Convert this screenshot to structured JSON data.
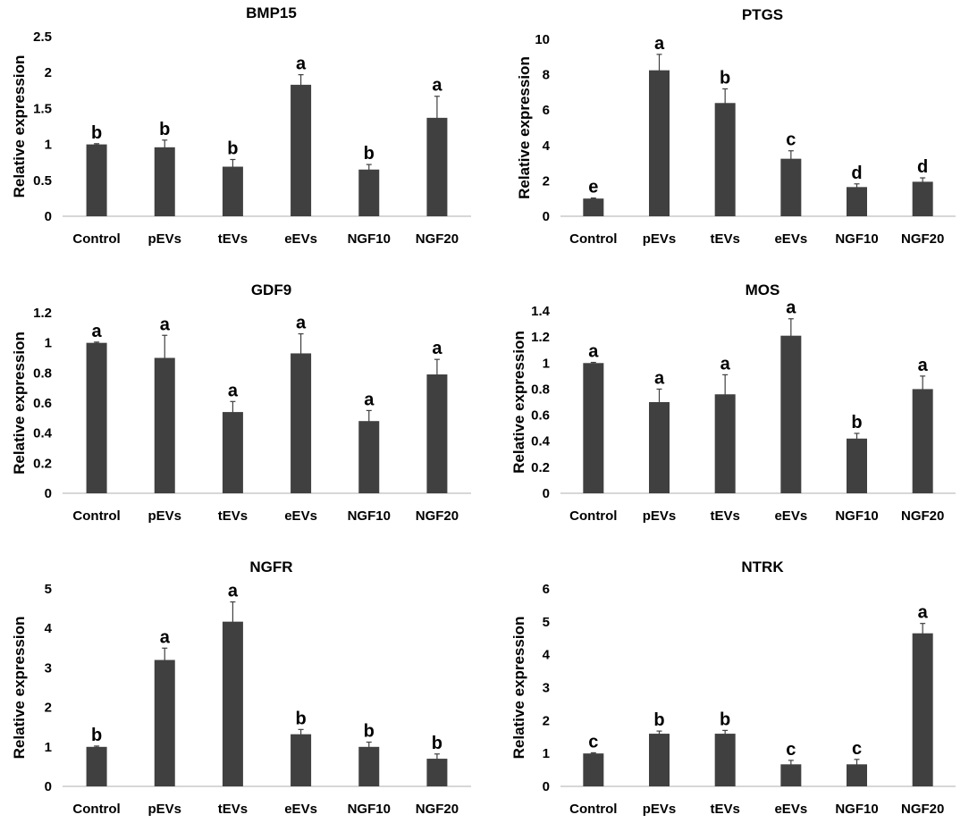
{
  "chart_data": [
    {
      "type": "bar",
      "title": "BMP15",
      "ylabel": "Relative expression",
      "xlabel": "",
      "categories": [
        "Control",
        "pEVs",
        "tEVs",
        "eEVs",
        "NGF10",
        "NGF20"
      ],
      "values": [
        1.0,
        0.96,
        0.69,
        1.83,
        0.65,
        1.37
      ],
      "errors": [
        0.01,
        0.1,
        0.1,
        0.14,
        0.07,
        0.3
      ],
      "significance": [
        "b",
        "b",
        "b",
        "a",
        "b",
        "a"
      ],
      "ylim": [
        0,
        2.5
      ],
      "yticks": [
        "0",
        "0.5",
        "1",
        "1.5",
        "2",
        "2.5"
      ],
      "ytick_values": [
        0,
        0.5,
        1,
        1.5,
        2,
        2.5
      ],
      "bar_color": "#404040"
    },
    {
      "type": "bar",
      "title": "PTGS",
      "ylabel": "Relative expression",
      "xlabel": "",
      "categories": [
        "Control",
        "pEVs",
        "tEVs",
        "eEVs",
        "NGF10",
        "NGF20"
      ],
      "values": [
        1.0,
        8.25,
        6.4,
        3.25,
        1.65,
        1.95
      ],
      "errors": [
        0.03,
        0.9,
        0.8,
        0.45,
        0.18,
        0.22
      ],
      "significance": [
        "e",
        "a",
        "b",
        "c",
        "d",
        "d"
      ],
      "ylim": [
        0,
        10
      ],
      "yticks": [
        "0",
        "2",
        "4",
        "6",
        "8",
        "10"
      ],
      "ytick_values": [
        0,
        2,
        4,
        6,
        8,
        10
      ],
      "bar_color": "#404040"
    },
    {
      "type": "bar",
      "title": "GDF9",
      "ylabel": "Relative expression",
      "xlabel": "",
      "categories": [
        "Control",
        "pEVs",
        "tEVs",
        "eEVs",
        "NGF10",
        "NGF20"
      ],
      "values": [
        1.0,
        0.9,
        0.54,
        0.93,
        0.48,
        0.79
      ],
      "errors": [
        0.005,
        0.15,
        0.07,
        0.13,
        0.07,
        0.1
      ],
      "significance": [
        "a",
        "a",
        "a",
        "a",
        "a",
        "a"
      ],
      "ylim": [
        0,
        1.2
      ],
      "yticks": [
        "0",
        "0.2",
        "0.4",
        "0.6",
        "0.8",
        "1",
        "1.2"
      ],
      "ytick_values": [
        0,
        0.2,
        0.4,
        0.6,
        0.8,
        1,
        1.2
      ],
      "bar_color": "#404040"
    },
    {
      "type": "bar",
      "title": "MOS",
      "ylabel": "Relative expression",
      "xlabel": "",
      "categories": [
        "Control",
        "pEVs",
        "tEVs",
        "eEVs",
        "NGF10",
        "NGF20"
      ],
      "values": [
        1.0,
        0.7,
        0.76,
        1.21,
        0.42,
        0.8
      ],
      "errors": [
        0.005,
        0.1,
        0.15,
        0.13,
        0.04,
        0.1
      ],
      "significance": [
        "a",
        "a",
        "a",
        "a",
        "b",
        "a"
      ],
      "ylim": [
        0,
        1.4
      ],
      "yticks": [
        "0",
        "0.2",
        "0.4",
        "0.6",
        "0.8",
        "1",
        "1.2",
        "1.4"
      ],
      "ytick_values": [
        0,
        0.2,
        0.4,
        0.6,
        0.8,
        1,
        1.2,
        1.4
      ],
      "bar_color": "#404040"
    },
    {
      "type": "bar",
      "title": "NGFR",
      "ylabel": "Relative expression",
      "xlabel": "",
      "categories": [
        "Control",
        "pEVs",
        "tEVs",
        "eEVs",
        "NGF10",
        "NGF20"
      ],
      "values": [
        1.0,
        3.2,
        4.17,
        1.32,
        1.0,
        0.7
      ],
      "errors": [
        0.02,
        0.3,
        0.5,
        0.12,
        0.12,
        0.12
      ],
      "significance": [
        "b",
        "a",
        "a",
        "b",
        "b",
        "b"
      ],
      "ylim": [
        0,
        5
      ],
      "yticks": [
        "0",
        "1",
        "2",
        "3",
        "4",
        "5"
      ],
      "ytick_values": [
        0,
        1,
        2,
        3,
        4,
        5
      ],
      "bar_color": "#404040"
    },
    {
      "type": "bar",
      "title": "NTRK",
      "ylabel": "Relative expression",
      "xlabel": "",
      "categories": [
        "Control",
        "pEVs",
        "tEVs",
        "eEVs",
        "NGF10",
        "NGF20"
      ],
      "values": [
        1.0,
        1.6,
        1.6,
        0.67,
        0.67,
        4.65
      ],
      "errors": [
        0.02,
        0.08,
        0.1,
        0.12,
        0.15,
        0.3
      ],
      "significance": [
        "c",
        "b",
        "b",
        "c",
        "c",
        "a"
      ],
      "ylim": [
        0,
        6
      ],
      "yticks": [
        "0",
        "1",
        "2",
        "3",
        "4",
        "5",
        "6"
      ],
      "ytick_values": [
        0,
        1,
        2,
        3,
        4,
        5,
        6
      ],
      "bar_color": "#404040"
    }
  ]
}
